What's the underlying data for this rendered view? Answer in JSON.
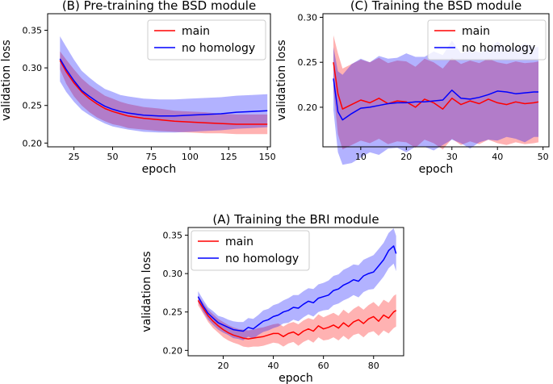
{
  "chart_data": [
    {
      "type": "line",
      "title": "(B) Pre-training the BSD module",
      "xlabel": "epoch",
      "ylabel": "validation loss",
      "xlim": [
        8,
        152
      ],
      "ylim": [
        0.195,
        0.372
      ],
      "xticks": [
        25,
        50,
        75,
        100,
        125,
        150
      ],
      "yticks": [
        0.2,
        0.25,
        0.3,
        0.35
      ],
      "ytick_labels": [
        "0.20",
        "0.25",
        "0.30",
        "0.35"
      ],
      "legend": "top-right",
      "series": [
        {
          "name": "main",
          "color": "#ff0000",
          "x": [
            16,
            20,
            25,
            30,
            35,
            40,
            45,
            50,
            55,
            60,
            70,
            80,
            90,
            100,
            110,
            120,
            130,
            140,
            150
          ],
          "y": [
            0.31,
            0.295,
            0.28,
            0.268,
            0.259,
            0.252,
            0.246,
            0.242,
            0.239,
            0.236,
            0.233,
            0.231,
            0.229,
            0.228,
            0.227,
            0.226,
            0.225,
            0.225,
            0.225
          ],
          "band": [
            0.012,
            0.016,
            0.018,
            0.018,
            0.018,
            0.018,
            0.017,
            0.017,
            0.016,
            0.016,
            0.015,
            0.015,
            0.014,
            0.014,
            0.014,
            0.013,
            0.013,
            0.013,
            0.013
          ]
        },
        {
          "name": "no homology",
          "color": "#0000ff",
          "x": [
            16,
            20,
            25,
            30,
            35,
            40,
            45,
            50,
            55,
            60,
            70,
            80,
            90,
            100,
            110,
            120,
            130,
            140,
            150
          ],
          "y": [
            0.312,
            0.298,
            0.283,
            0.27,
            0.262,
            0.255,
            0.249,
            0.245,
            0.242,
            0.24,
            0.237,
            0.236,
            0.236,
            0.237,
            0.238,
            0.239,
            0.241,
            0.242,
            0.243
          ],
          "band": [
            0.03,
            0.03,
            0.028,
            0.026,
            0.025,
            0.024,
            0.023,
            0.023,
            0.022,
            0.022,
            0.022,
            0.022,
            0.022,
            0.022,
            0.022,
            0.022,
            0.022,
            0.022,
            0.022
          ]
        }
      ]
    },
    {
      "type": "line",
      "title": "(C) Training the BSD module",
      "xlabel": "epoch",
      "ylabel": "validation loss",
      "xlim": [
        1.7,
        51.3
      ],
      "ylim": [
        0.156,
        0.304
      ],
      "xticks": [
        10,
        20,
        30,
        40,
        50
      ],
      "yticks": [
        0.2,
        0.25,
        0.3
      ],
      "ytick_labels": [
        "0.20",
        "0.25",
        "0.30"
      ],
      "legend": "top-right",
      "series": [
        {
          "name": "main",
          "color": "#ff0000",
          "x": [
            4,
            5,
            6,
            8,
            10,
            12,
            14,
            16,
            18,
            20,
            22,
            24,
            26,
            28,
            30,
            32,
            34,
            36,
            38,
            40,
            42,
            44,
            46,
            48,
            49
          ],
          "y": [
            0.25,
            0.215,
            0.198,
            0.203,
            0.208,
            0.205,
            0.21,
            0.204,
            0.207,
            0.206,
            0.2,
            0.209,
            0.205,
            0.198,
            0.21,
            0.203,
            0.207,
            0.204,
            0.209,
            0.205,
            0.203,
            0.206,
            0.204,
            0.205,
            0.206
          ],
          "band": [
            0.03,
            0.045,
            0.045,
            0.045,
            0.045,
            0.045,
            0.045,
            0.045,
            0.045,
            0.045,
            0.045,
            0.045,
            0.045,
            0.045,
            0.045,
            0.045,
            0.045,
            0.045,
            0.045,
            0.045,
            0.045,
            0.045,
            0.045,
            0.045,
            0.045
          ]
        },
        {
          "name": "no homology",
          "color": "#0000ff",
          "x": [
            4,
            5,
            6,
            8,
            10,
            12,
            14,
            16,
            18,
            20,
            22,
            24,
            26,
            28,
            30,
            32,
            34,
            36,
            38,
            40,
            42,
            44,
            46,
            48,
            49
          ],
          "y": [
            0.232,
            0.195,
            0.186,
            0.193,
            0.199,
            0.2,
            0.202,
            0.204,
            0.205,
            0.205,
            0.206,
            0.206,
            0.207,
            0.208,
            0.219,
            0.21,
            0.209,
            0.211,
            0.214,
            0.218,
            0.217,
            0.215,
            0.216,
            0.217,
            0.217
          ],
          "band": [
            0.035,
            0.045,
            0.05,
            0.055,
            0.055,
            0.05,
            0.055,
            0.05,
            0.05,
            0.055,
            0.05,
            0.05,
            0.055,
            0.05,
            0.055,
            0.05,
            0.055,
            0.05,
            0.05,
            0.055,
            0.05,
            0.05,
            0.055,
            0.05,
            0.05
          ]
        }
      ]
    },
    {
      "type": "line",
      "title": "(A) Training the BRI module",
      "xlabel": "epoch",
      "ylabel": "validation loss",
      "xlim": [
        6,
        92
      ],
      "ylim": [
        0.193,
        0.36
      ],
      "xticks": [
        20,
        40,
        60,
        80
      ],
      "yticks": [
        0.2,
        0.25,
        0.3,
        0.35
      ],
      "ytick_labels": [
        "0.20",
        "0.25",
        "0.30",
        "0.35"
      ],
      "legend": "top-left",
      "series": [
        {
          "name": "main",
          "color": "#ff0000",
          "x": [
            10,
            12,
            14,
            16,
            18,
            20,
            22,
            24,
            26,
            28,
            30,
            32,
            34,
            36,
            38,
            40,
            42,
            44,
            46,
            48,
            50,
            52,
            54,
            56,
            58,
            60,
            62,
            64,
            66,
            68,
            70,
            72,
            74,
            76,
            78,
            80,
            82,
            84,
            86,
            88,
            89
          ],
          "y": [
            0.265,
            0.255,
            0.245,
            0.238,
            0.232,
            0.227,
            0.223,
            0.22,
            0.218,
            0.216,
            0.215,
            0.216,
            0.217,
            0.218,
            0.22,
            0.222,
            0.222,
            0.218,
            0.222,
            0.224,
            0.22,
            0.225,
            0.228,
            0.225,
            0.232,
            0.228,
            0.23,
            0.233,
            0.229,
            0.236,
            0.231,
            0.237,
            0.24,
            0.235,
            0.241,
            0.244,
            0.238,
            0.246,
            0.242,
            0.25,
            0.252
          ],
          "band": [
            0.006,
            0.007,
            0.008,
            0.009,
            0.009,
            0.01,
            0.01,
            0.01,
            0.01,
            0.011,
            0.011,
            0.011,
            0.012,
            0.012,
            0.012,
            0.012,
            0.013,
            0.013,
            0.013,
            0.013,
            0.014,
            0.014,
            0.014,
            0.015,
            0.015,
            0.015,
            0.016,
            0.016,
            0.016,
            0.017,
            0.017,
            0.017,
            0.018,
            0.018,
            0.018,
            0.019,
            0.019,
            0.02,
            0.02,
            0.021,
            0.021
          ]
        },
        {
          "name": "no homology",
          "color": "#0000ff",
          "x": [
            10,
            12,
            14,
            16,
            18,
            20,
            22,
            24,
            26,
            28,
            30,
            32,
            34,
            36,
            38,
            40,
            42,
            44,
            46,
            48,
            50,
            52,
            54,
            56,
            58,
            60,
            62,
            64,
            66,
            68,
            70,
            72,
            74,
            76,
            78,
            80,
            82,
            84,
            86,
            88,
            89
          ],
          "y": [
            0.27,
            0.258,
            0.248,
            0.242,
            0.236,
            0.233,
            0.23,
            0.227,
            0.226,
            0.225,
            0.23,
            0.228,
            0.233,
            0.238,
            0.24,
            0.244,
            0.246,
            0.25,
            0.252,
            0.256,
            0.255,
            0.26,
            0.264,
            0.262,
            0.268,
            0.27,
            0.272,
            0.278,
            0.28,
            0.285,
            0.288,
            0.292,
            0.29,
            0.297,
            0.3,
            0.302,
            0.31,
            0.318,
            0.33,
            0.336,
            0.326
          ],
          "band": [
            0.007,
            0.008,
            0.008,
            0.009,
            0.009,
            0.01,
            0.01,
            0.011,
            0.011,
            0.012,
            0.012,
            0.013,
            0.013,
            0.014,
            0.014,
            0.015,
            0.015,
            0.015,
            0.016,
            0.016,
            0.017,
            0.017,
            0.017,
            0.018,
            0.018,
            0.018,
            0.019,
            0.019,
            0.019,
            0.02,
            0.02,
            0.02,
            0.021,
            0.021,
            0.021,
            0.022,
            0.022,
            0.022,
            0.023,
            0.023,
            0.023
          ]
        }
      ]
    }
  ]
}
